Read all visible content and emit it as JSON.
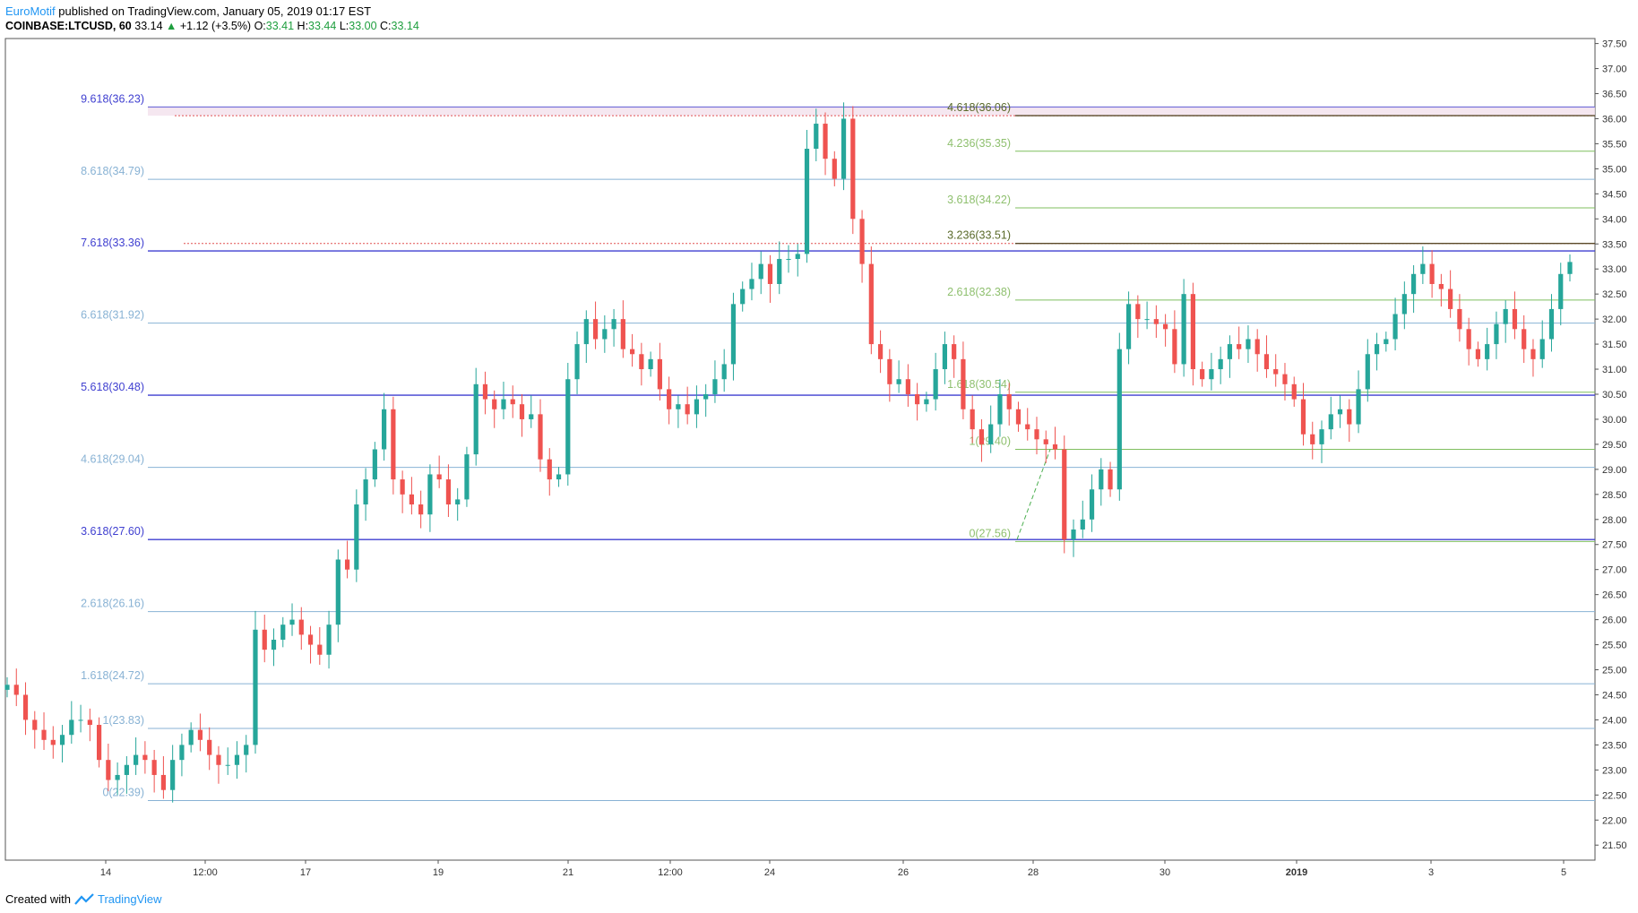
{
  "header": {
    "author": "EuroMotif",
    "published_text": " published on TradingView.com, January 05, 2019 01:17 EST",
    "symbol": "COINBASE:LTCUSD, 60",
    "last": "33.14",
    "change_arrow": "▲",
    "change": "+1.12 (+3.5%)",
    "o_label": "O:",
    "o_val": "33.41",
    "h_label": "H:",
    "h_val": "33.44",
    "l_label": "L:",
    "l_val": "33.00",
    "c_label": "C:",
    "c_val": "33.14"
  },
  "footer": {
    "created_with": "Created with",
    "brand": "TradingView"
  },
  "colors": {
    "up": "#26a69a",
    "down": "#ef5350",
    "fib_strong": "#3f3fd0",
    "fib_light": "#88b2d4",
    "ext_green": "#7fbf5f",
    "ext_dark": "#5a4a2a"
  },
  "chart_data": {
    "type": "candlestick",
    "ylim": [
      21.2,
      37.6
    ],
    "y_ticks": [
      "21.50",
      "22.00",
      "22.50",
      "23.00",
      "23.50",
      "24.00",
      "24.50",
      "25.00",
      "25.50",
      "26.00",
      "26.50",
      "27.00",
      "27.50",
      "28.00",
      "28.50",
      "29.00",
      "29.50",
      "30.00",
      "30.50",
      "31.00",
      "31.50",
      "32.00",
      "32.50",
      "33.00",
      "33.50",
      "34.00",
      "34.50",
      "35.00",
      "35.50",
      "36.00",
      "36.50",
      "37.00",
      "37.50"
    ],
    "x_ticks": [
      "14",
      "12:00",
      "17",
      "19",
      "21",
      "12:00",
      "24",
      "26",
      "28",
      "30",
      "2019",
      "3",
      "5"
    ],
    "fib_left": [
      {
        "label": "0(22.39)",
        "value": 22.39,
        "strong": false
      },
      {
        "label": "1(23.83)",
        "value": 23.83,
        "strong": false
      },
      {
        "label": "1.618(24.72)",
        "value": 24.72,
        "strong": false
      },
      {
        "label": "2.618(26.16)",
        "value": 26.16,
        "strong": false
      },
      {
        "label": "3.618(27.60)",
        "value": 27.6,
        "strong": true
      },
      {
        "label": "4.618(29.04)",
        "value": 29.04,
        "strong": false
      },
      {
        "label": "5.618(30.48)",
        "value": 30.48,
        "strong": true
      },
      {
        "label": "6.618(31.92)",
        "value": 31.92,
        "strong": false
      },
      {
        "label": "7.618(33.36)",
        "value": 33.36,
        "strong": true
      },
      {
        "label": "8.618(34.79)",
        "value": 34.79,
        "strong": false
      },
      {
        "label": "9.618(36.23)",
        "value": 36.23,
        "strong": true
      }
    ],
    "fib_right": [
      {
        "label": "0(27.56)",
        "value": 27.56,
        "dark": false
      },
      {
        "label": "1(29.40)",
        "value": 29.4,
        "dark": false
      },
      {
        "label": "1.618(30.54)",
        "value": 30.54,
        "dark": false
      },
      {
        "label": "2.618(32.38)",
        "value": 32.38,
        "dark": false
      },
      {
        "label": "3.236(33.51)",
        "value": 33.51,
        "dark": true
      },
      {
        "label": "3.618(34.22)",
        "value": 34.22,
        "dark": false
      },
      {
        "label": "4.236(35.35)",
        "value": 35.35,
        "dark": false
      },
      {
        "label": "4.618(36.06)",
        "value": 36.06,
        "dark": true
      }
    ],
    "series_close": [
      24.7,
      24.5,
      24.0,
      23.8,
      23.6,
      23.5,
      23.7,
      24.0,
      24.0,
      23.9,
      23.2,
      22.8,
      22.9,
      23.1,
      23.3,
      23.2,
      22.9,
      22.6,
      23.2,
      23.5,
      23.8,
      23.6,
      23.3,
      23.1,
      23.1,
      23.3,
      23.5,
      25.8,
      25.4,
      25.6,
      25.9,
      26.0,
      25.7,
      25.5,
      25.3,
      25.9,
      27.2,
      27.0,
      28.3,
      28.8,
      29.4,
      30.2,
      28.8,
      28.5,
      28.3,
      28.1,
      28.9,
      28.8,
      28.3,
      28.4,
      29.3,
      30.7,
      30.4,
      30.2,
      30.4,
      30.3,
      30.0,
      30.1,
      29.2,
      28.8,
      28.9,
      30.8,
      31.5,
      32.0,
      31.6,
      31.8,
      32.0,
      31.4,
      31.3,
      31.0,
      31.2,
      30.6,
      30.2,
      30.3,
      30.1,
      30.4,
      30.5,
      30.8,
      31.1,
      32.3,
      32.6,
      32.8,
      33.1,
      32.7,
      33.2,
      33.2,
      33.3,
      35.4,
      35.9,
      35.2,
      34.8,
      36.0,
      34.0,
      33.1,
      31.5,
      31.2,
      30.7,
      30.8,
      30.5,
      30.3,
      30.4,
      31.0,
      31.5,
      31.2,
      30.2,
      29.8,
      29.5,
      29.9,
      30.5,
      30.2,
      29.9,
      29.8,
      29.6,
      29.5,
      29.4,
      27.6,
      27.8,
      28.0,
      28.6,
      29.0,
      28.6,
      31.4,
      32.3,
      32.0,
      32.0,
      31.9,
      31.8,
      31.1,
      32.5,
      31.0,
      30.8,
      31.0,
      31.2,
      31.5,
      31.4,
      31.6,
      31.3,
      31.0,
      30.9,
      30.7,
      30.4,
      29.7,
      29.5,
      29.8,
      30.1,
      30.2,
      29.9,
      30.6,
      31.3,
      31.5,
      31.6,
      32.1,
      32.5,
      32.9,
      33.1,
      32.7,
      32.6,
      32.2,
      31.8,
      31.4,
      31.2,
      31.5,
      31.9,
      32.2,
      31.8,
      31.4,
      31.2,
      31.6,
      32.2,
      32.9,
      33.14
    ]
  }
}
